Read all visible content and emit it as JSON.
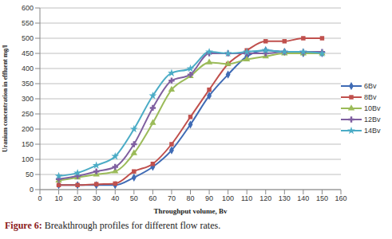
{
  "chart_data": {
    "type": "line",
    "title": "Figure 6: Breakthrough profiles for different flow rates.",
    "x_label": "Throughput volume, Bv",
    "y_label": "Uranium concentration in effluent mg/l",
    "x": [
      10,
      20,
      30,
      40,
      50,
      60,
      70,
      80,
      90,
      100,
      110,
      120,
      130,
      140,
      150
    ],
    "series": [
      {
        "name": "6Bv",
        "color": "#3f6bb5",
        "marker": "diamond",
        "values": [
          15,
          15,
          15,
          15,
          40,
          75,
          130,
          215,
          310,
          380,
          440,
          460,
          455,
          450,
          450
        ]
      },
      {
        "name": "8Bv",
        "color": "#c0504d",
        "marker": "square",
        "values": [
          15,
          15,
          18,
          20,
          60,
          85,
          150,
          240,
          330,
          415,
          460,
          490,
          490,
          500,
          500
        ]
      },
      {
        "name": "10Bv",
        "color": "#9bbb59",
        "marker": "triangle",
        "values": [
          30,
          40,
          50,
          60,
          120,
          220,
          330,
          375,
          420,
          415,
          430,
          440,
          450,
          450,
          450
        ]
      },
      {
        "name": "12Bv",
        "color": "#7f5fa0",
        "marker": "cross",
        "values": [
          35,
          45,
          60,
          75,
          150,
          270,
          360,
          380,
          450,
          450,
          450,
          450,
          455,
          455,
          455
        ]
      },
      {
        "name": "14Bv",
        "color": "#4bacc6",
        "marker": "star",
        "values": [
          45,
          55,
          80,
          110,
          200,
          310,
          385,
          400,
          455,
          450,
          455,
          460,
          455,
          455,
          450
        ]
      }
    ],
    "xlim": [
      0,
      160
    ],
    "xticks": [
      0,
      10,
      20,
      30,
      40,
      50,
      60,
      70,
      80,
      90,
      100,
      110,
      120,
      130,
      140,
      150,
      160
    ],
    "ylim": [
      0,
      600
    ],
    "yticks": [
      0,
      50,
      100,
      150,
      200,
      250,
      300,
      350,
      400,
      450,
      500,
      550,
      600
    ],
    "grid": true,
    "legend": "right",
    "line_style": "smooth"
  }
}
